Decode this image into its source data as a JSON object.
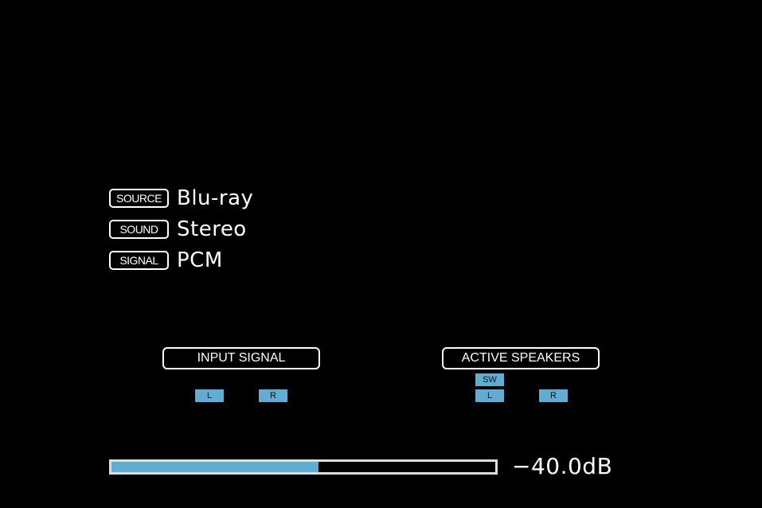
{
  "info": [
    {
      "tag": "SOURCE",
      "value": "Blu-ray"
    },
    {
      "tag": "SOUND",
      "value": "Stereo"
    },
    {
      "tag": "SIGNAL",
      "value": "PCM"
    }
  ],
  "input_signal": {
    "title": "INPUT SIGNAL",
    "channels": [
      "L",
      "R"
    ]
  },
  "active_speakers": {
    "title": "ACTIVE SPEAKERS",
    "channels": [
      "SW",
      "L",
      "R"
    ]
  },
  "volume": {
    "label": "−40.0dB",
    "level_percent": 54
  },
  "colors": {
    "accent": "#62acd3",
    "background": "#000000"
  }
}
